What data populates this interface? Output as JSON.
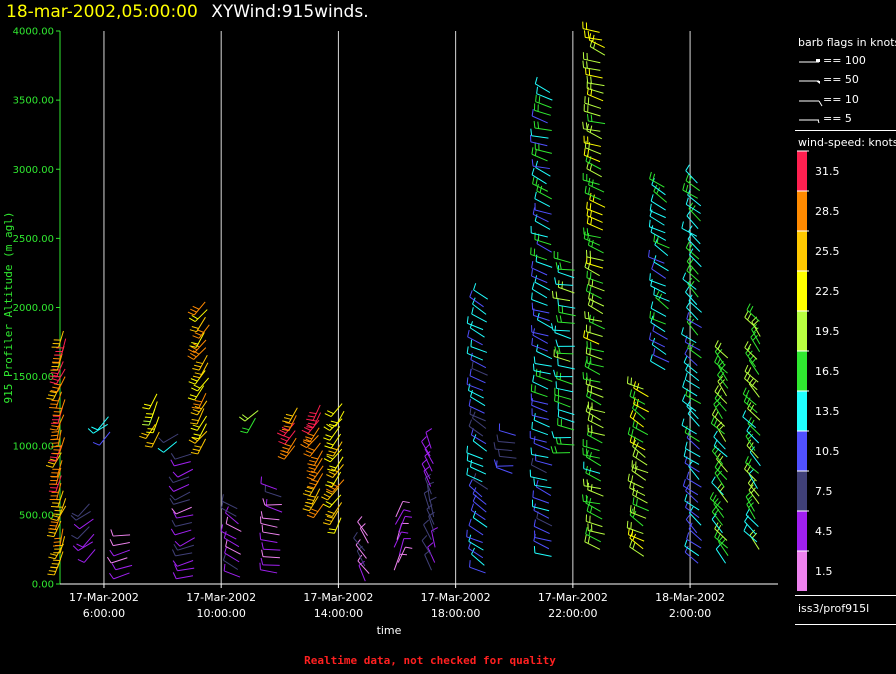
{
  "header": {
    "date_text": "18-mar-2002,05:00:00",
    "plot_name": "XYWind:915winds."
  },
  "footer_note": "Realtime data, not checked for quality",
  "station_label": "iss3/prof915l",
  "barb_legend": {
    "title": "barb flags in knots",
    "items": [
      {
        "label": "== 100"
      },
      {
        "label": "== 50"
      },
      {
        "label": "== 10"
      },
      {
        "label": "== 5"
      }
    ]
  },
  "colorbar": {
    "title": "wind-speed: knots",
    "levels": [
      {
        "label": "31.5",
        "color": "#ff2050"
      },
      {
        "label": "28.5",
        "color": "#ff8a00"
      },
      {
        "label": "25.5",
        "color": "#ffc800"
      },
      {
        "label": "22.5",
        "color": "#ffff00"
      },
      {
        "label": "19.5",
        "color": "#b8ff40"
      },
      {
        "label": "16.5",
        "color": "#30e830"
      },
      {
        "label": "13.5",
        "color": "#20ffff"
      },
      {
        "label": "10.5",
        "color": "#5050ff"
      },
      {
        "label": "7.5",
        "color": "#404078"
      },
      {
        "label": "4.5",
        "color": "#a020f0"
      },
      {
        "label": "1.5",
        "color": "#ee82ee"
      }
    ]
  },
  "chart_data": {
    "type": "scatter",
    "title": "18-mar-2002,05:00:00 XYWind:915winds.",
    "xlabel": "time",
    "ylabel": "915 Profiler Altitude (m agl)",
    "x_range": [
      "2002-03-17T04:30",
      "2002-03-18T05:00"
    ],
    "ylim": [
      0,
      4000
    ],
    "y_ticks": [
      "0.00",
      "500.00",
      "1000.00",
      "1500.00",
      "2000.00",
      "2500.00",
      "3000.00",
      "3500.00",
      "4000.00"
    ],
    "x_ticks": [
      {
        "date": "17-Mar-2002",
        "time": "6:00:00",
        "hour": 6
      },
      {
        "date": "17-Mar-2002",
        "time": "10:00:00",
        "hour": 10
      },
      {
        "date": "17-Mar-2002",
        "time": "14:00:00",
        "hour": 14
      },
      {
        "date": "17-Mar-2002",
        "time": "18:00:00",
        "hour": 18
      },
      {
        "date": "17-Mar-2002",
        "time": "22:00:00",
        "hour": 22
      },
      {
        "date": "18-Mar-2002",
        "time": "2:00:00",
        "hour": 26
      }
    ],
    "hour_range": [
      4.5,
      29.0
    ],
    "vertical_grid_at_ticks": true,
    "profiles": [
      {
        "hour": 4.6,
        "ymin": 180,
        "ymax": 1850,
        "speed": 27,
        "dir": 200
      },
      {
        "hour": 5.6,
        "ymin": 250,
        "ymax": 580,
        "speed": 5,
        "dir": 230
      },
      {
        "hour": 6.2,
        "ymin": 1100,
        "ymax": 1230,
        "speed": 12,
        "dir": 230
      },
      {
        "hour": 6.9,
        "ymin": 80,
        "ymax": 380,
        "speed": 5,
        "dir": 260
      },
      {
        "hour": 7.8,
        "ymin": 1100,
        "ymax": 1380,
        "speed": 23,
        "dir": 210
      },
      {
        "hour": 8.5,
        "ymin": 1030,
        "ymax": 1120,
        "speed": 10,
        "dir": 230
      },
      {
        "hour": 9.0,
        "ymin": 60,
        "ymax": 950,
        "speed": 5,
        "dir": 250
      },
      {
        "hour": 9.5,
        "ymin": 1050,
        "ymax": 2040,
        "speed": 25,
        "dir": 215
      },
      {
        "hour": 10.6,
        "ymin": 50,
        "ymax": 580,
        "speed": 4,
        "dir": 300
      },
      {
        "hour": 11.2,
        "ymin": 1200,
        "ymax": 1300,
        "speed": 19,
        "dir": 220
      },
      {
        "hour": 12.0,
        "ymin": 80,
        "ymax": 700,
        "speed": 4,
        "dir": 280
      },
      {
        "hour": 12.6,
        "ymin": 1000,
        "ymax": 1320,
        "speed": 29,
        "dir": 215
      },
      {
        "hour": 13.4,
        "ymin": 580,
        "ymax": 1320,
        "speed": 28,
        "dir": 215
      },
      {
        "hour": 14.1,
        "ymin": 480,
        "ymax": 1320,
        "speed": 24,
        "dir": 215
      },
      {
        "hour": 15.0,
        "ymin": 20,
        "ymax": 350,
        "speed": 4,
        "dir": 330
      },
      {
        "hour": 16.0,
        "ymin": 100,
        "ymax": 500,
        "speed": 2,
        "dir": 20
      },
      {
        "hour": 17.2,
        "ymin": 100,
        "ymax": 1000,
        "speed": 6,
        "dir": 340
      },
      {
        "hour": 19.0,
        "ymin": 80,
        "ymax": 2100,
        "speed": 10,
        "dir": 300
      },
      {
        "hour": 20.0,
        "ymin": 800,
        "ymax": 1100,
        "speed": 8,
        "dir": 280
      },
      {
        "hour": 21.2,
        "ymin": 200,
        "ymax": 3560,
        "speed": 11,
        "dir": 290
      },
      {
        "hour": 22.0,
        "ymin": 950,
        "ymax": 2350,
        "speed": 15,
        "dir": 280
      },
      {
        "hour": 23.0,
        "ymin": 250,
        "ymax": 4000,
        "speed": 17,
        "dir": 290
      },
      {
        "hour": 24.5,
        "ymin": 200,
        "ymax": 1450,
        "speed": 19,
        "dir": 300
      },
      {
        "hour": 25.2,
        "ymin": 1550,
        "ymax": 2900,
        "speed": 13,
        "dir": 300
      },
      {
        "hour": 26.3,
        "ymin": 150,
        "ymax": 2900,
        "speed": 12,
        "dir": 310
      },
      {
        "hour": 27.2,
        "ymin": 150,
        "ymax": 1650,
        "speed": 16,
        "dir": 320
      },
      {
        "hour": 28.3,
        "ymin": 250,
        "ymax": 1900,
        "speed": 16,
        "dir": 320
      }
    ]
  }
}
